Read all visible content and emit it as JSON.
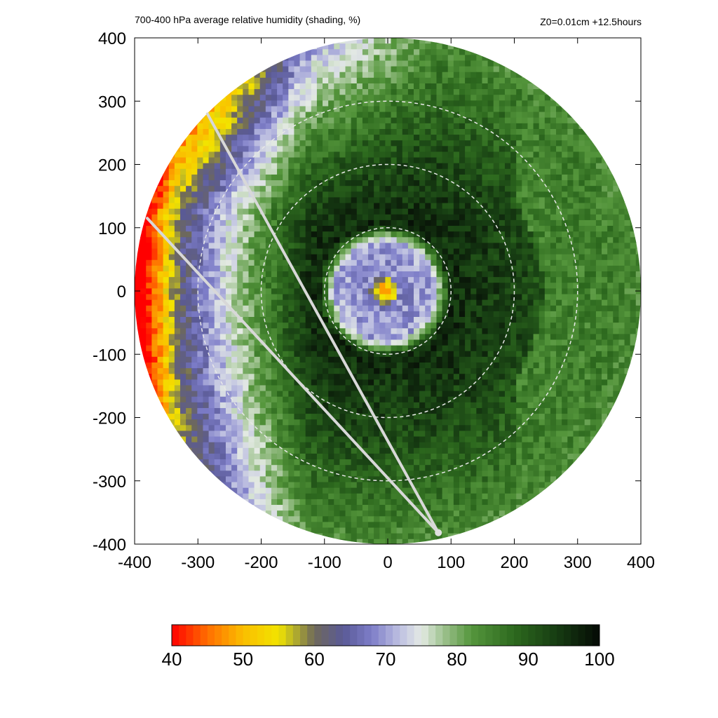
{
  "chart_data": {
    "type": "heatmap",
    "title": "700-400 hPa average relative humidity (shading, %)",
    "subtitle": "Z0=0.01cm  +12.5hours",
    "xlabel": "",
    "ylabel": "",
    "xlim": [
      -400,
      400
    ],
    "ylim": [
      -400,
      400
    ],
    "x_ticks": [
      "-400",
      "-300",
      "-200",
      "-100",
      "0",
      "100",
      "200",
      "300",
      "400"
    ],
    "y_ticks": [
      "400",
      "300",
      "200",
      "100",
      "0",
      "-100",
      "-200",
      "-300",
      "-400"
    ],
    "domain_radius": 400,
    "range_rings": [
      100,
      200,
      300
    ],
    "colorbar": {
      "min": 40,
      "max": 100,
      "ticks": [
        "40",
        "50",
        "60",
        "70",
        "80",
        "90",
        "100"
      ]
    },
    "shear_lines": [
      {
        "from": [
          -380,
          115
        ],
        "to": [
          80,
          -382
        ]
      },
      {
        "from": [
          -285,
          280
        ],
        "to": [
          80,
          -382
        ]
      }
    ],
    "features": {
      "eye_center": [
        -5,
        0
      ],
      "eye_rh": 48,
      "dry_west_rh": 52,
      "inner_ring_rh": 68,
      "moist_ring_rh": 96,
      "outer_east_rh": 82,
      "northwest_rh": 66
    }
  }
}
